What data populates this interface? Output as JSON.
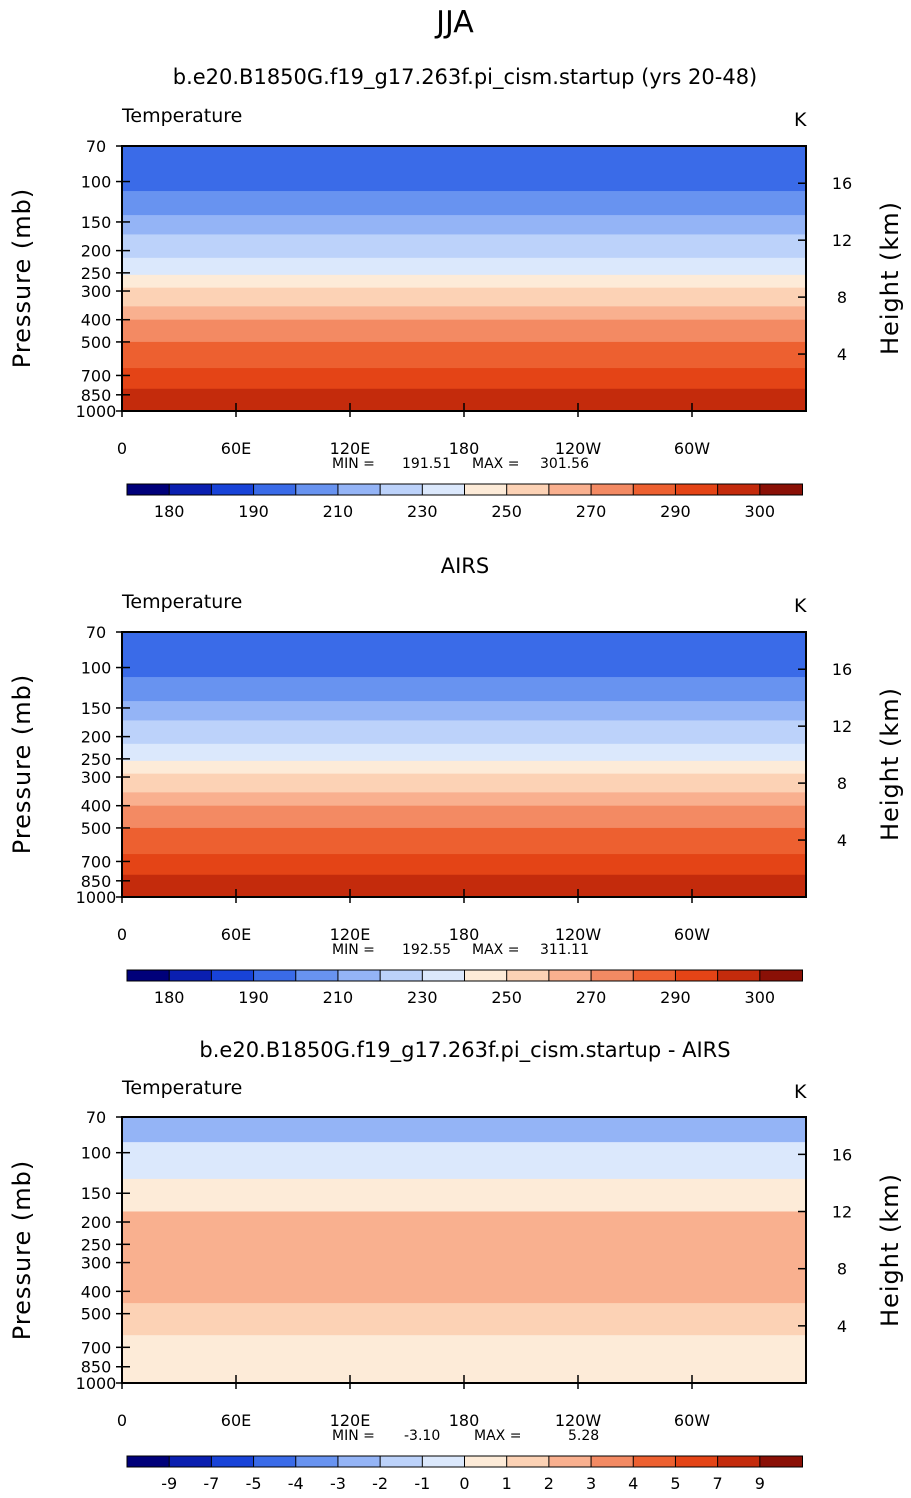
{
  "figure": {
    "season": "JJA",
    "colors": [
      "#00007a",
      "#0a1fb0",
      "#1843d8",
      "#3a6be8",
      "#6893f0",
      "#94b4f6",
      "#bcd2fa",
      "#dbe8fc",
      "#fdebd8",
      "#fcd2b5",
      "#f9b08f",
      "#f38a63",
      "#ed6030",
      "#e44416",
      "#c42b0c",
      "#8a1006"
    ]
  },
  "chart_data": [
    {
      "type": "heatmap",
      "title": "b.e20.B1850G.f19_g17.263f.pi_cism.startup (yrs 20-48)",
      "variable": "Temperature",
      "units": "K",
      "xlabel": "",
      "ylabel": "Pressure (mb)",
      "ylabel_right": "Height (km)",
      "x_ticks": [
        "0",
        "60E",
        "120E",
        "180",
        "120W",
        "60W"
      ],
      "x_values_deg": [
        0,
        60,
        120,
        180,
        240,
        300
      ],
      "y_ticks": [
        "70",
        "100",
        "150",
        "200",
        "250",
        "300",
        "400",
        "500",
        "700",
        "850",
        "1000"
      ],
      "y_right_ticks": [
        "4",
        "8",
        "12",
        "16"
      ],
      "stats": {
        "min_label": "MIN =",
        "min": "191.51",
        "max_label": "MAX =",
        "max": "301.56"
      },
      "bands_mb": [
        70,
        85,
        110,
        140,
        170,
        215,
        255,
        290,
        350,
        400,
        500,
        650,
        800,
        1000
      ],
      "band_color_index": [
        3,
        3,
        4,
        5,
        6,
        7,
        8,
        9,
        10,
        11,
        12,
        13,
        14
      ],
      "colorbar_labels": [
        "180",
        "190",
        "210",
        "230",
        "250",
        "270",
        "290",
        "300"
      ]
    },
    {
      "type": "heatmap",
      "title": "AIRS",
      "variable": "Temperature",
      "units": "K",
      "xlabel": "",
      "ylabel": "Pressure (mb)",
      "ylabel_right": "Height (km)",
      "x_ticks": [
        "0",
        "60E",
        "120E",
        "180",
        "120W",
        "60W"
      ],
      "x_values_deg": [
        0,
        60,
        120,
        180,
        240,
        300
      ],
      "y_ticks": [
        "70",
        "100",
        "150",
        "200",
        "250",
        "300",
        "400",
        "500",
        "700",
        "850",
        "1000"
      ],
      "y_right_ticks": [
        "4",
        "8",
        "12",
        "16"
      ],
      "stats": {
        "min_label": "MIN =",
        "min": "192.55",
        "max_label": "MAX =",
        "max": "311.11"
      },
      "bands_mb": [
        70,
        85,
        110,
        140,
        170,
        215,
        255,
        290,
        350,
        400,
        500,
        650,
        800,
        1000
      ],
      "band_color_index": [
        3,
        3,
        4,
        5,
        6,
        7,
        8,
        9,
        10,
        11,
        12,
        13,
        14
      ],
      "colorbar_labels": [
        "180",
        "190",
        "210",
        "230",
        "250",
        "270",
        "290",
        "300"
      ]
    },
    {
      "type": "heatmap",
      "title": "b.e20.B1850G.f19_g17.263f.pi_cism.startup - AIRS",
      "variable": "Temperature",
      "units": "K",
      "xlabel": "",
      "ylabel": "Pressure (mb)",
      "ylabel_right": "Height (km)",
      "x_ticks": [
        "0",
        "60E",
        "120E",
        "180",
        "120W",
        "60W"
      ],
      "x_values_deg": [
        0,
        60,
        120,
        180,
        240,
        300
      ],
      "y_ticks": [
        "70",
        "100",
        "150",
        "200",
        "250",
        "300",
        "400",
        "500",
        "700",
        "850",
        "1000"
      ],
      "y_right_ticks": [
        "4",
        "8",
        "12",
        "16"
      ],
      "stats": {
        "min_label": "MIN =",
        "min": "-3.10",
        "max_label": "MAX =",
        "max": "5.28"
      },
      "bands_mb": [
        70,
        90,
        130,
        180,
        450,
        620,
        1000
      ],
      "band_color_index": [
        5,
        7,
        8,
        10,
        9,
        8
      ],
      "colorbar_labels": [
        "-9",
        "-7",
        "-5",
        "-4",
        "-3",
        "-2",
        "-1",
        "0",
        "1",
        "2",
        "3",
        "4",
        "5",
        "7",
        "9"
      ]
    }
  ]
}
